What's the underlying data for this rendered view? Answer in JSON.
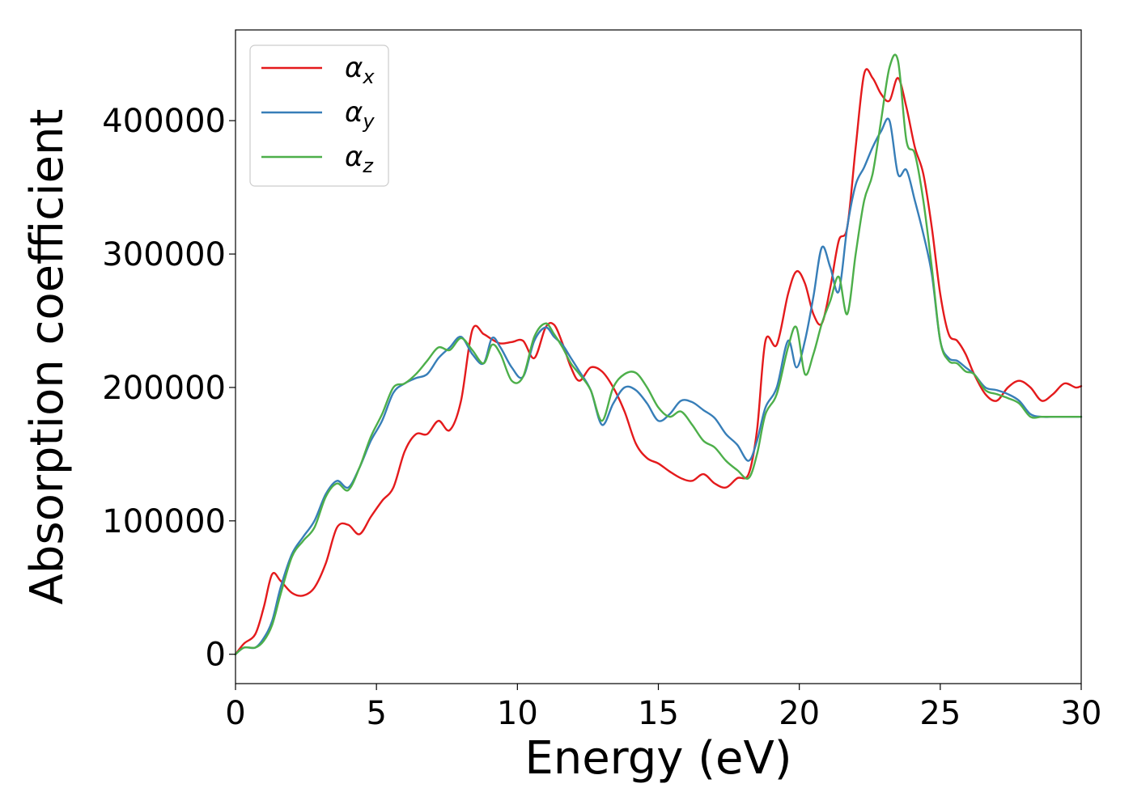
{
  "chart_data": {
    "type": "line",
    "title": "",
    "xlabel": "Energy (eV)",
    "ylabel": "Absorption coefficient",
    "xlim": [
      0,
      30
    ],
    "ylim": [
      -22000,
      468000
    ],
    "xticks": [
      0,
      5,
      10,
      15,
      20,
      25,
      30
    ],
    "yticks": [
      0,
      100000,
      200000,
      300000,
      400000
    ],
    "grid": false,
    "legend": "top-left",
    "series": [
      {
        "name": "α_x",
        "symbol": "α",
        "subscript": "x",
        "color": "#e41a1c",
        "x": [
          0,
          0.3,
          0.7,
          1.0,
          1.3,
          1.6,
          2.0,
          2.4,
          2.8,
          3.2,
          3.6,
          4.0,
          4.4,
          4.8,
          5.2,
          5.6,
          6.0,
          6.4,
          6.8,
          7.2,
          7.6,
          8.0,
          8.4,
          8.8,
          9.1,
          9.4,
          9.8,
          10.2,
          10.6,
          11.0,
          11.3,
          11.6,
          11.9,
          12.2,
          12.6,
          13.0,
          13.4,
          13.8,
          14.2,
          14.6,
          15.0,
          15.4,
          15.8,
          16.2,
          16.6,
          17.0,
          17.4,
          17.8,
          18.2,
          18.5,
          18.8,
          19.2,
          19.6,
          19.9,
          20.2,
          20.5,
          20.8,
          21.1,
          21.4,
          21.7,
          22.0,
          22.3,
          22.6,
          22.9,
          23.2,
          23.5,
          23.8,
          24.1,
          24.4,
          24.7,
          25.0,
          25.3,
          25.6,
          25.9,
          26.2,
          26.6,
          27.0,
          27.4,
          27.8,
          28.2,
          28.6,
          29.0,
          29.4,
          29.8,
          30.0
        ],
        "y": [
          0,
          8000,
          15000,
          35000,
          60000,
          55000,
          46000,
          44000,
          50000,
          68000,
          95000,
          97000,
          90000,
          103000,
          115000,
          125000,
          152000,
          165000,
          165000,
          175000,
          168000,
          190000,
          243000,
          240000,
          236000,
          233000,
          234000,
          235000,
          222000,
          245000,
          247000,
          233000,
          215000,
          205000,
          215000,
          212000,
          200000,
          182000,
          158000,
          147000,
          143000,
          137000,
          132000,
          130000,
          135000,
          128000,
          125000,
          132000,
          135000,
          168000,
          235000,
          232000,
          270000,
          287000,
          278000,
          255000,
          248000,
          275000,
          310000,
          320000,
          380000,
          435000,
          432000,
          420000,
          415000,
          432000,
          410000,
          380000,
          360000,
          320000,
          270000,
          240000,
          235000,
          225000,
          210000,
          195000,
          190000,
          200000,
          205000,
          200000,
          190000,
          195000,
          203000,
          200000,
          201000
        ],
        "note": "x/y sampled along the curve in data units"
      },
      {
        "name": "α_y",
        "symbol": "α",
        "subscript": "y",
        "color": "#377eb8",
        "x": [
          0,
          0.3,
          0.7,
          1.0,
          1.3,
          1.6,
          2.0,
          2.4,
          2.8,
          3.2,
          3.6,
          4.0,
          4.4,
          4.8,
          5.2,
          5.6,
          6.0,
          6.4,
          6.8,
          7.2,
          7.6,
          8.0,
          8.4,
          8.8,
          9.1,
          9.4,
          9.8,
          10.2,
          10.6,
          11.0,
          11.3,
          11.6,
          11.9,
          12.2,
          12.6,
          13.0,
          13.4,
          13.8,
          14.2,
          14.6,
          15.0,
          15.4,
          15.8,
          16.2,
          16.6,
          17.0,
          17.4,
          17.8,
          18.2,
          18.5,
          18.8,
          19.2,
          19.6,
          19.9,
          20.2,
          20.5,
          20.8,
          21.1,
          21.4,
          21.7,
          22.0,
          22.3,
          22.6,
          22.9,
          23.2,
          23.5,
          23.8,
          24.1,
          24.4,
          24.7,
          25.0,
          25.3,
          25.6,
          25.9,
          26.2,
          26.6,
          27.0,
          27.4,
          27.8,
          28.2,
          28.6,
          29.0,
          29.4,
          29.8,
          30.0
        ],
        "y": [
          0,
          5000,
          5000,
          12000,
          25000,
          50000,
          75000,
          88000,
          100000,
          120000,
          130000,
          125000,
          140000,
          160000,
          175000,
          196000,
          203000,
          207000,
          210000,
          222000,
          230000,
          238000,
          225000,
          218000,
          237000,
          230000,
          215000,
          208000,
          235000,
          245000,
          238000,
          232000,
          222000,
          212000,
          198000,
          172000,
          188000,
          200000,
          198000,
          188000,
          175000,
          180000,
          190000,
          189000,
          183000,
          177000,
          165000,
          157000,
          145000,
          160000,
          185000,
          200000,
          235000,
          215000,
          235000,
          268000,
          305000,
          290000,
          272000,
          320000,
          352000,
          365000,
          380000,
          392000,
          400000,
          360000,
          363000,
          340000,
          315000,
          285000,
          235000,
          222000,
          220000,
          215000,
          210000,
          200000,
          198000,
          195000,
          190000,
          180000,
          178000,
          178000,
          178000,
          178000,
          178000
        ],
        "note": "x/y sampled along the curve in data units"
      },
      {
        "name": "α_z",
        "symbol": "α",
        "subscript": "z",
        "color": "#4daf4a",
        "x": [
          0,
          0.3,
          0.7,
          1.0,
          1.3,
          1.6,
          2.0,
          2.4,
          2.8,
          3.2,
          3.6,
          4.0,
          4.4,
          4.8,
          5.2,
          5.6,
          6.0,
          6.4,
          6.8,
          7.2,
          7.6,
          8.0,
          8.4,
          8.8,
          9.1,
          9.4,
          9.8,
          10.2,
          10.6,
          11.0,
          11.3,
          11.6,
          11.9,
          12.2,
          12.6,
          13.0,
          13.4,
          13.8,
          14.2,
          14.6,
          15.0,
          15.4,
          15.8,
          16.2,
          16.6,
          17.0,
          17.4,
          17.8,
          18.2,
          18.5,
          18.8,
          19.2,
          19.6,
          19.9,
          20.2,
          20.5,
          20.8,
          21.1,
          21.4,
          21.7,
          22.0,
          22.3,
          22.6,
          22.9,
          23.2,
          23.5,
          23.8,
          24.1,
          24.4,
          24.7,
          25.0,
          25.3,
          25.6,
          25.9,
          26.2,
          26.6,
          27.0,
          27.4,
          27.8,
          28.2,
          28.6,
          29.0,
          29.4,
          29.8,
          30.0
        ],
        "y": [
          0,
          5000,
          5000,
          10000,
          22000,
          45000,
          73000,
          85000,
          95000,
          118000,
          128000,
          123000,
          140000,
          163000,
          180000,
          200000,
          203000,
          210000,
          220000,
          230000,
          228000,
          237000,
          228000,
          218000,
          232000,
          225000,
          205000,
          208000,
          238000,
          248000,
          240000,
          230000,
          218000,
          210000,
          198000,
          175000,
          200000,
          210000,
          211000,
          200000,
          185000,
          178000,
          182000,
          172000,
          160000,
          155000,
          145000,
          138000,
          132000,
          150000,
          180000,
          195000,
          230000,
          245000,
          210000,
          225000,
          248000,
          265000,
          283000,
          255000,
          300000,
          340000,
          360000,
          400000,
          440000,
          445000,
          385000,
          375000,
          340000,
          290000,
          235000,
          220000,
          218000,
          212000,
          210000,
          198000,
          195000,
          192000,
          188000,
          178000,
          178000,
          178000,
          178000,
          178000,
          178000
        ],
        "note": "x/y sampled along the curve in data units"
      }
    ]
  }
}
